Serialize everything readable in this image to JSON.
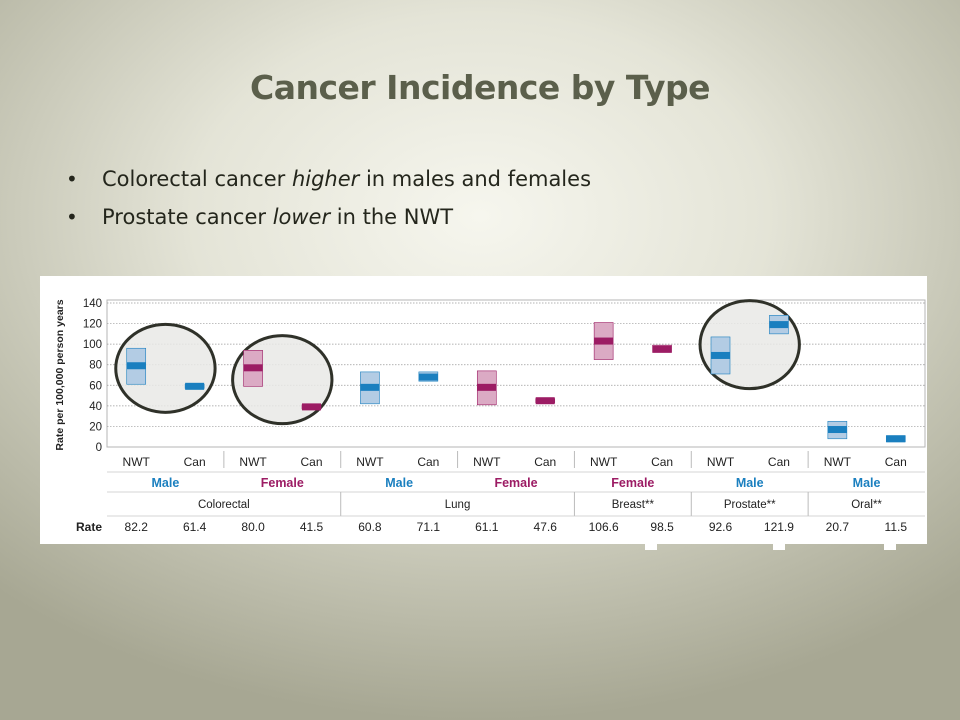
{
  "slide": {
    "title": "Cancer Incidence by Type",
    "bullets": [
      {
        "pre": "Colorectal cancer ",
        "em": "higher",
        "post": " in males and females"
      },
      {
        "pre": "Prostate cancer ",
        "em": "lower",
        "post": " in the NWT"
      }
    ],
    "bullet_symbol": "•"
  },
  "chart_data": {
    "type": "bar",
    "title": "",
    "ylabel": "Rate per 100,000 person years",
    "ylim": [
      0,
      140
    ],
    "yticks": [
      0,
      20,
      40,
      60,
      80,
      100,
      120,
      140
    ],
    "grid": true,
    "row_label": "Rate",
    "colors": {
      "male": "#1a7fbf",
      "female": "#9c1c64",
      "male_light": "#b3cce4",
      "female_light": "#dbaac4"
    },
    "bars": [
      {
        "x": "NWT",
        "sex": "Male",
        "site": "Colorectal",
        "value": 82.2,
        "label": "82.2",
        "ci_low": 61,
        "ci_high": 96,
        "mark": 79
      },
      {
        "x": "Can",
        "sex": "Male",
        "site": "Colorectal",
        "value": 61.4,
        "label": "61.4",
        "ci_low": 57,
        "ci_high": 61,
        "mark": 59
      },
      {
        "x": "NWT",
        "sex": "Female",
        "site": "Colorectal",
        "value": 80.0,
        "label": "80.0",
        "ci_low": 59,
        "ci_high": 94,
        "mark": 77
      },
      {
        "x": "Can",
        "sex": "Female",
        "site": "Colorectal",
        "value": 41.5,
        "label": "41.5",
        "ci_low": 37,
        "ci_high": 41,
        "mark": 39
      },
      {
        "x": "NWT",
        "sex": "Male",
        "site": "Lung",
        "value": 60.8,
        "label": "60.8",
        "ci_low": 42,
        "ci_high": 73,
        "mark": 58
      },
      {
        "x": "Can",
        "sex": "Male",
        "site": "Lung",
        "value": 71.1,
        "label": "71.1",
        "ci_low": 64,
        "ci_high": 73,
        "mark": 68
      },
      {
        "x": "NWT",
        "sex": "Female",
        "site": "Lung",
        "value": 61.1,
        "label": "61.1",
        "ci_low": 41,
        "ci_high": 74,
        "mark": 58
      },
      {
        "x": "Can",
        "sex": "Female",
        "site": "Lung",
        "value": 47.6,
        "label": "47.6",
        "ci_low": 43,
        "ci_high": 47,
        "mark": 45
      },
      {
        "x": "NWT",
        "sex": "Female",
        "site": "Breast**",
        "value": 106.6,
        "label": "106.6",
        "ci_low": 85,
        "ci_high": 121,
        "mark": 103
      },
      {
        "x": "Can",
        "sex": "Female",
        "site": "Breast**",
        "value": 98.5,
        "label": "98.5",
        "ci_low": 92,
        "ci_high": 99,
        "mark": 95
      },
      {
        "x": "NWT",
        "sex": "Male",
        "site": "Prostate**",
        "value": 92.6,
        "label": "92.6",
        "ci_low": 71,
        "ci_high": 107,
        "mark": 89
      },
      {
        "x": "Can",
        "sex": "Male",
        "site": "Prostate**",
        "value": 121.9,
        "label": "121.9",
        "ci_low": 110,
        "ci_high": 128,
        "mark": 119
      },
      {
        "x": "NWT",
        "sex": "Male",
        "site": "Oral**",
        "value": 20.7,
        "label": "20.7",
        "ci_low": 8,
        "ci_high": 25,
        "mark": 17
      },
      {
        "x": "Can",
        "sex": "Male",
        "site": "Oral**",
        "value": 11.5,
        "label": "11.5",
        "ci_low": 5,
        "ci_high": 11,
        "mark": 8
      }
    ],
    "sex_groups": [
      "Male",
      "Female",
      "Male",
      "Female",
      "Female",
      "Male",
      "Male"
    ],
    "site_groups": [
      {
        "label": "Colorectal",
        "span": 2
      },
      {
        "label": "Lung",
        "span": 2
      },
      {
        "label": "Breast**",
        "span": 1
      },
      {
        "label": "Prostate**",
        "span": 1
      },
      {
        "label": "Oral**",
        "span": 1
      }
    ],
    "highlight_circles": [
      {
        "sex": "Male",
        "site": "Colorectal"
      },
      {
        "sex": "Female",
        "site": "Colorectal"
      },
      {
        "sex": "Male",
        "site": "Prostate**"
      }
    ]
  }
}
